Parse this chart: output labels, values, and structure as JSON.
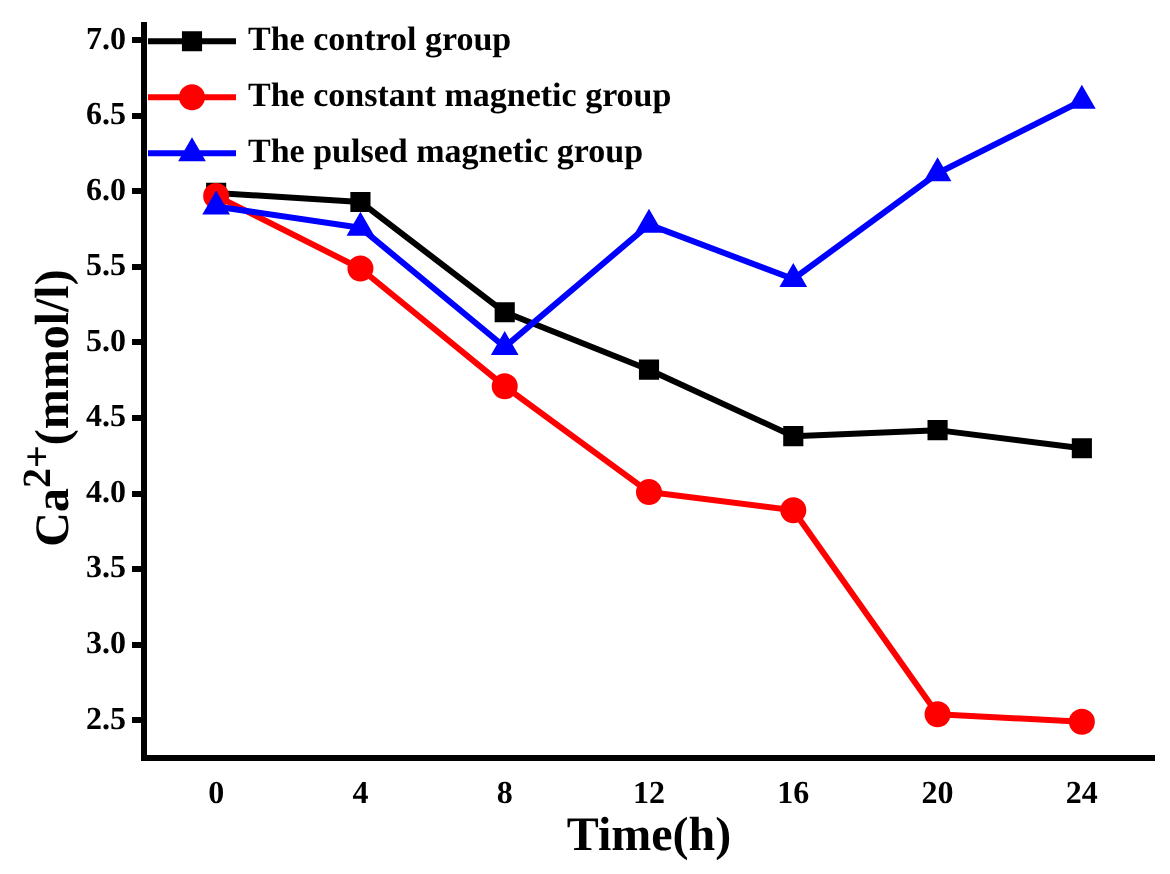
{
  "chart_data": {
    "type": "line",
    "xlabel": "Time(h)",
    "ylabel": "Ca$^{2+}$(mmol/l)",
    "x": [
      0,
      4,
      8,
      12,
      16,
      20,
      24
    ],
    "series": [
      {
        "name": "The control group",
        "color": "#000000",
        "marker": "square",
        "values": [
          5.99,
          5.93,
          5.2,
          4.82,
          4.38,
          4.42,
          4.3
        ]
      },
      {
        "name": "The constant magnetic group",
        "color": "#ff0000",
        "marker": "circle",
        "values": [
          5.97,
          5.49,
          4.71,
          4.01,
          3.89,
          2.54,
          2.49
        ]
      },
      {
        "name": "The pulsed magnetic group",
        "color": "#0000ff",
        "marker": "triangle",
        "values": [
          5.9,
          5.76,
          4.97,
          5.78,
          5.42,
          6.12,
          6.6
        ]
      }
    ],
    "xlim": [
      -2,
      26
    ],
    "xticks": [
      0,
      4,
      8,
      12,
      16,
      20,
      24
    ],
    "ylim": [
      2.25,
      7.1
    ],
    "yticks": [
      2.5,
      {
        "value": 3,
        "label": "3.0"
      },
      3.5,
      {
        "value": 4,
        "label": "4.0"
      },
      4.5,
      {
        "value": 5,
        "label": "5.0"
      },
      5.5,
      {
        "value": 6,
        "label": "6.0"
      },
      6.5,
      {
        "value": 7,
        "label": "7.0"
      }
    ],
    "grid": false,
    "legend": "top left",
    "line_style": "solid"
  }
}
